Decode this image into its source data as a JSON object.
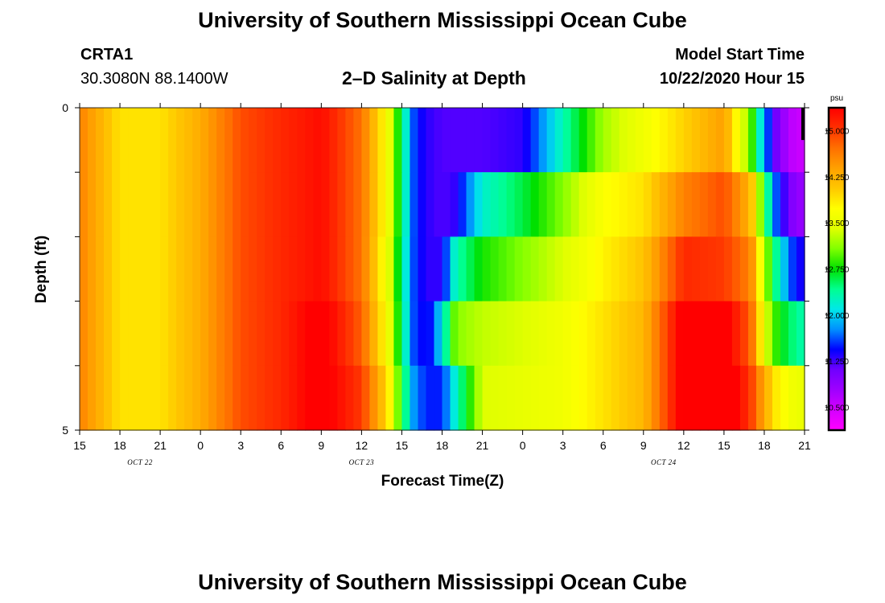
{
  "page": {
    "title_top": "University of Southern Mississippi Ocean Cube",
    "title_bottom": "University of Southern Mississippi Ocean Cube",
    "station_id": "CRTA1",
    "station_coords": "30.3080N 88.1400W",
    "model_start_label": "Model Start Time",
    "model_start_value": "10/22/2020 Hour 15"
  },
  "chart_data": {
    "type": "heatmap",
    "title": "2–D Salinity at Depth",
    "xlabel": "Forecast Time(Z)",
    "ylabel": "Depth (ft)",
    "x_tick_labels": [
      "15",
      "18",
      "21",
      "0",
      "3",
      "6",
      "9",
      "12",
      "15",
      "18",
      "21",
      "0",
      "3",
      "6",
      "9",
      "12",
      "15",
      "18",
      "21"
    ],
    "date_labels": [
      {
        "label": "OCT  22",
        "after_tick": 1.5
      },
      {
        "label": "OCT  23",
        "after_tick": 7
      },
      {
        "label": "OCT  24",
        "after_tick": 14.5
      }
    ],
    "y_tick_labels": [
      "0",
      "5"
    ],
    "ylim": [
      0,
      5
    ],
    "x_range_hours": [
      0,
      54
    ],
    "depth_layers": 5,
    "colorbar": {
      "unit": "psu",
      "min": 10.125,
      "max": 15.375,
      "labels": [
        "10.500",
        "11.250",
        "12.000",
        "12.750",
        "13.500",
        "14.250",
        "15.000"
      ],
      "colors": [
        "#ff00ff",
        "#d400ff",
        "#9f00ff",
        "#7000ff",
        "#0000ff",
        "#0090ff",
        "#00e8e8",
        "#00ff90",
        "#00e000",
        "#80ff00",
        "#e0ff00",
        "#ffff00",
        "#ffc800",
        "#ffa000",
        "#ff7000",
        "#ff3000",
        "#ff0000"
      ]
    },
    "series": [
      {
        "depth_layer": 1,
        "hour": [
          0,
          3,
          6,
          9,
          12,
          15,
          18,
          21,
          23,
          24,
          25,
          26,
          27,
          28,
          30,
          33,
          36,
          39,
          42,
          45,
          48,
          50,
          51,
          52,
          53,
          54
        ],
        "values": [
          14.6,
          13.9,
          13.9,
          14.3,
          14.9,
          15.1,
          15.3,
          14.7,
          13.6,
          12.5,
          11.5,
          11.3,
          11.2,
          11.2,
          11.2,
          11.3,
          12.3,
          13.2,
          13.6,
          14.0,
          14.4,
          13.0,
          11.8,
          11.0,
          10.6,
          10.5
        ]
      },
      {
        "depth_layer": 2,
        "hour": [
          0,
          3,
          6,
          9,
          12,
          15,
          18,
          21,
          23,
          24,
          25,
          26,
          27,
          28,
          30,
          33,
          36,
          39,
          42,
          45,
          48,
          50,
          51,
          52,
          53,
          54
        ],
        "values": [
          14.6,
          13.9,
          13.9,
          14.3,
          14.9,
          15.1,
          15.3,
          14.7,
          13.6,
          12.5,
          11.5,
          11.3,
          11.2,
          11.3,
          12.2,
          12.6,
          13.1,
          13.7,
          13.9,
          14.6,
          14.9,
          14.2,
          12.7,
          11.5,
          11.0,
          10.8
        ]
      },
      {
        "depth_layer": 3,
        "hour": [
          0,
          3,
          6,
          9,
          12,
          15,
          18,
          21,
          23,
          24,
          25,
          26,
          27,
          28,
          30,
          33,
          36,
          39,
          42,
          45,
          48,
          50,
          51,
          52,
          53,
          54
        ],
        "values": [
          14.6,
          13.9,
          13.9,
          14.3,
          14.9,
          15.1,
          15.3,
          14.7,
          13.5,
          12.4,
          11.5,
          11.3,
          11.3,
          12.3,
          12.8,
          13.1,
          13.4,
          13.8,
          14.1,
          15.1,
          15.0,
          14.6,
          13.3,
          12.3,
          11.6,
          11.3
        ]
      },
      {
        "depth_layer": 4,
        "hour": [
          0,
          3,
          6,
          9,
          12,
          15,
          18,
          21,
          23,
          24,
          25,
          26,
          27,
          28,
          30,
          33,
          36,
          39,
          42,
          45,
          48,
          50,
          51,
          52,
          53,
          54
        ],
        "values": [
          14.6,
          13.9,
          13.9,
          14.3,
          14.9,
          15.1,
          15.5,
          14.8,
          13.6,
          12.5,
          11.5,
          11.4,
          12.1,
          13.1,
          13.3,
          13.4,
          13.6,
          13.9,
          14.2,
          15.5,
          15.5,
          14.8,
          13.5,
          12.8,
          12.5,
          12.3
        ]
      },
      {
        "depth_layer": 5,
        "hour": [
          0,
          3,
          6,
          9,
          12,
          15,
          18,
          21,
          23,
          24,
          25,
          26,
          27,
          28,
          30,
          33,
          36,
          39,
          42,
          45,
          48,
          50,
          51,
          52,
          53,
          54
        ],
        "values": [
          14.6,
          13.9,
          13.9,
          14.3,
          14.9,
          15.1,
          15.5,
          15.0,
          13.9,
          12.7,
          11.7,
          11.5,
          11.5,
          12.2,
          13.4,
          13.5,
          13.6,
          13.9,
          14.2,
          15.5,
          15.7,
          15.0,
          14.3,
          13.8,
          13.6,
          13.5
        ]
      }
    ]
  }
}
